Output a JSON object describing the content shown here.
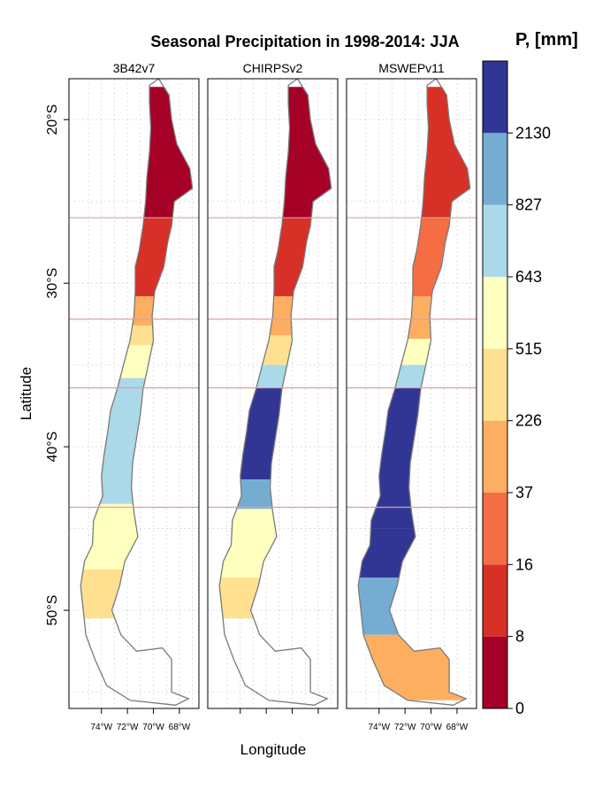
{
  "chart_data": {
    "type": "heatmap",
    "title": "Seasonal Precipitation in 1998-2014: JJA",
    "xlabel": "Longitude",
    "ylabel": "Latitude",
    "panels": [
      "3B42v7",
      "CHIRPSv2",
      "MSWEPv11"
    ],
    "xlim": [
      -76.5,
      -66.5
    ],
    "ylim": [
      -56,
      -17.5
    ],
    "x_ticks": [
      {
        "value": -74,
        "label": "74°W"
      },
      {
        "value": -72,
        "label": "72°W"
      },
      {
        "value": -70,
        "label": "70°W"
      },
      {
        "value": -68,
        "label": "68°W"
      }
    ],
    "y_ticks": [
      {
        "value": -20,
        "label": "20°S"
      },
      {
        "value": -30,
        "label": "30°S"
      },
      {
        "value": -40,
        "label": "40°S"
      },
      {
        "value": -50,
        "label": "50°S"
      }
    ],
    "region_boundaries_lat": [
      -26,
      -32.2,
      -36.4,
      -43.7
    ],
    "grid": true,
    "legend_position": "right",
    "colorbar": {
      "title": "P, [mm]",
      "breaks": [
        "0",
        "8",
        "16",
        "37",
        "226",
        "515",
        "643",
        "827",
        "2130"
      ],
      "colors": [
        "#a50026",
        "#d73027",
        "#f46d43",
        "#fdae61",
        "#fee090",
        "#ffffbf",
        "#abd9e9",
        "#74add1",
        "#313695"
      ]
    },
    "bands": [
      [
        [
          -18,
          -26,
          0
        ],
        [
          -26,
          -30.8,
          1
        ],
        [
          -30.8,
          -32.6,
          3
        ],
        [
          -32.6,
          -33.8,
          4
        ],
        [
          -33.8,
          -35.8,
          5
        ],
        [
          -35.8,
          -38,
          6
        ],
        [
          -38,
          -43.5,
          6
        ],
        [
          -43.5,
          -47.5,
          5
        ],
        [
          -47.5,
          -50.5,
          4
        ]
      ],
      [
        [
          -18,
          -26,
          0
        ],
        [
          -26,
          -30.8,
          1
        ],
        [
          -30.8,
          -33.2,
          3
        ],
        [
          -33.2,
          -35,
          4
        ],
        [
          -35,
          -36.4,
          6
        ],
        [
          -36.4,
          -42,
          8
        ],
        [
          -42,
          -43.8,
          7
        ],
        [
          -43.8,
          -48,
          5
        ],
        [
          -48,
          -50.5,
          4
        ]
      ],
      [
        [
          -18,
          -26,
          1
        ],
        [
          -26,
          -30.8,
          2
        ],
        [
          -30.8,
          -33.4,
          3
        ],
        [
          -33.4,
          -35,
          5
        ],
        [
          -35,
          -36.4,
          6
        ],
        [
          -36.4,
          -45,
          8
        ],
        [
          -45,
          -48,
          8
        ],
        [
          -48,
          -51.5,
          7
        ],
        [
          -51.5,
          -55.5,
          3
        ]
      ]
    ]
  }
}
